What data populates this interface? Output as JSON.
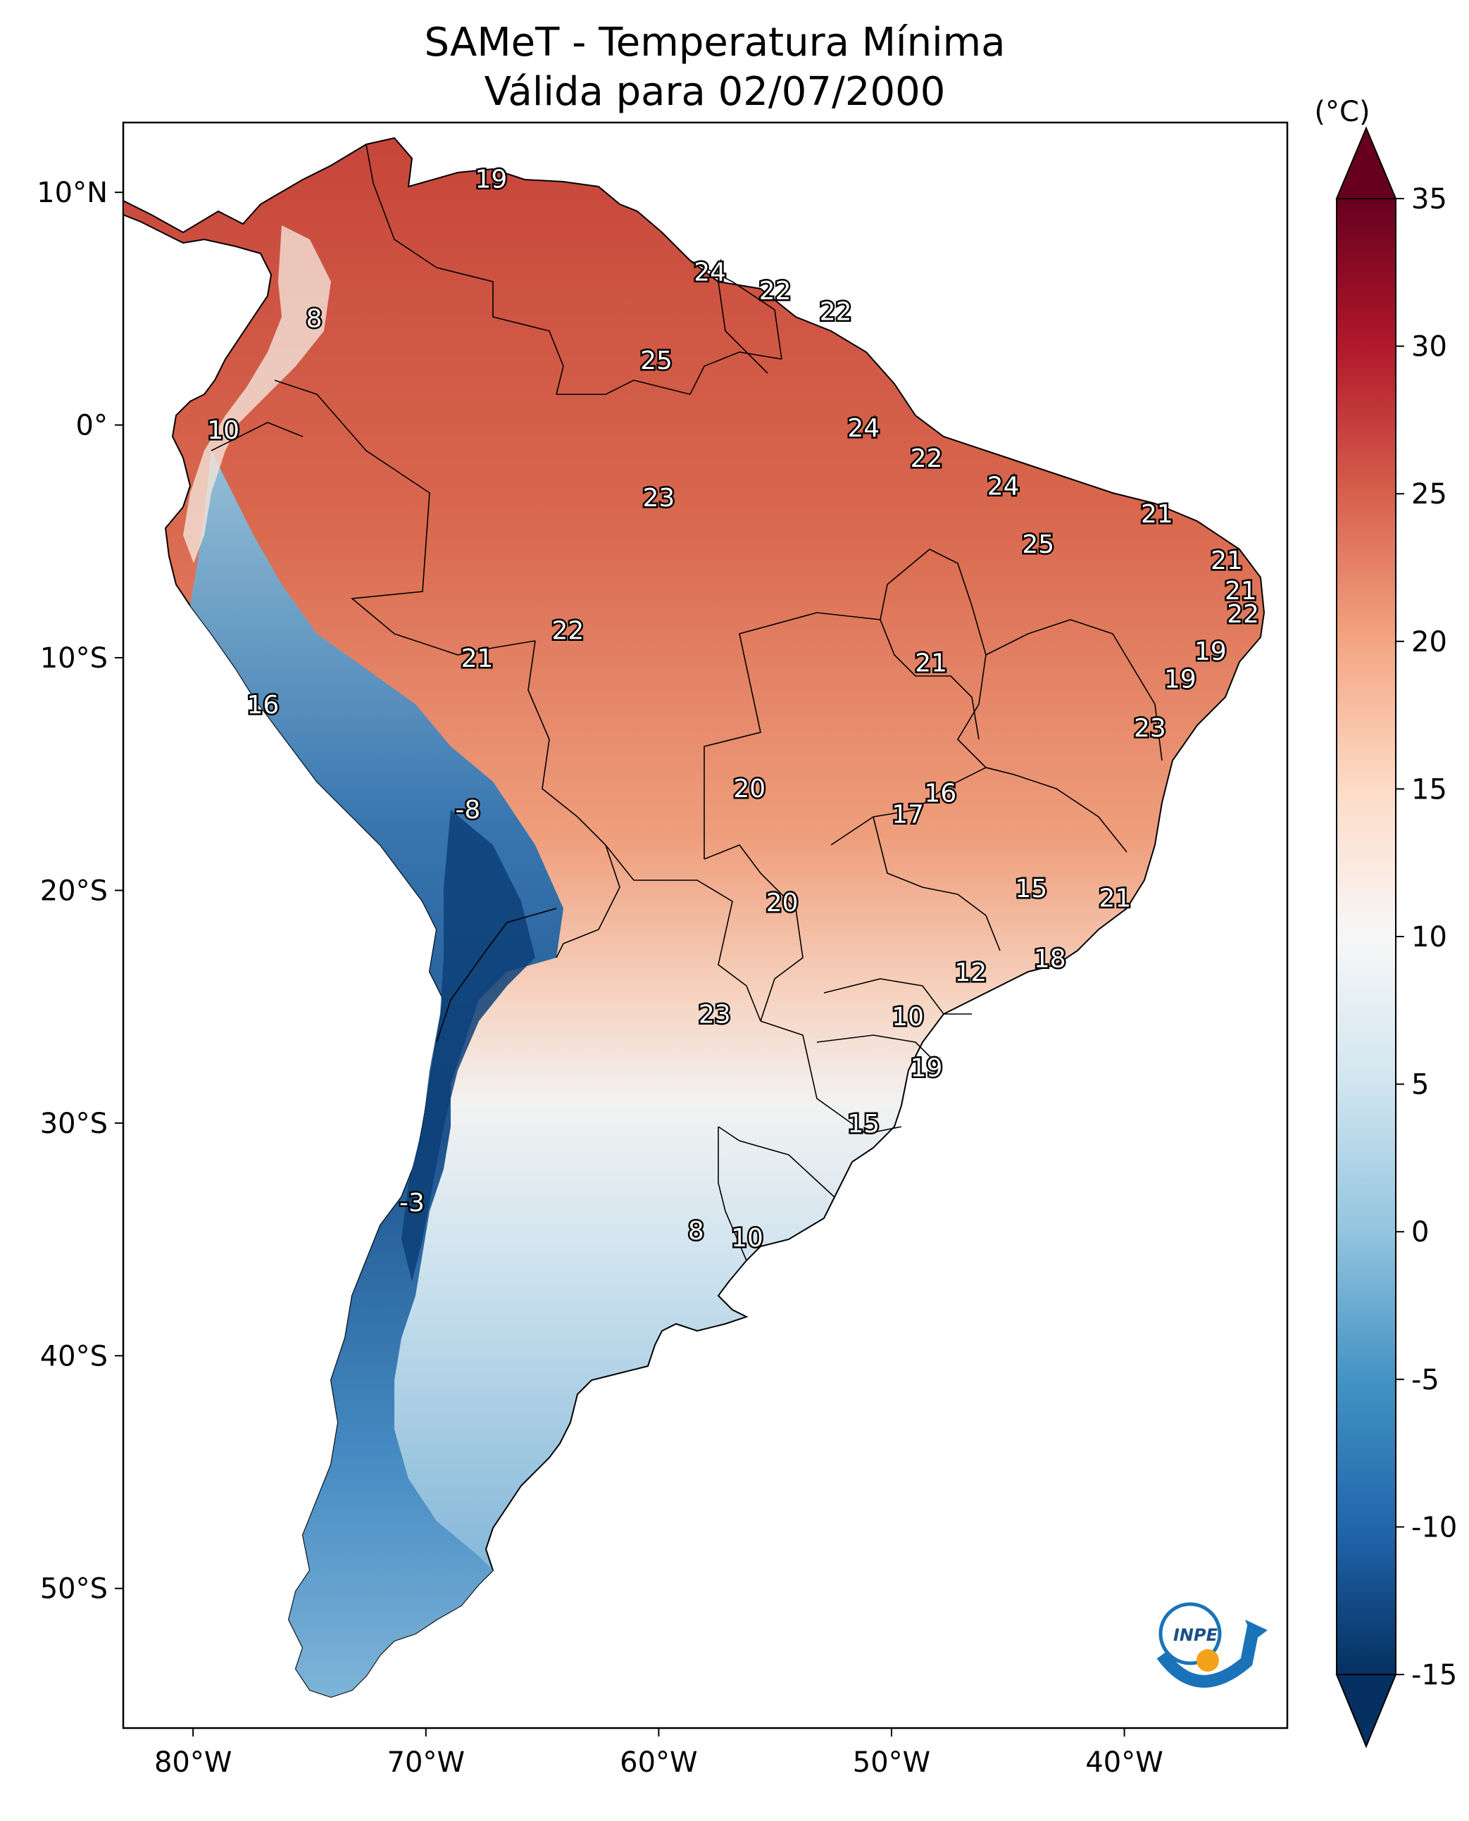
{
  "title": {
    "line1": "SAMeT - Temperatura Mínima",
    "line2": "Válida para 02/07/2000"
  },
  "map": {
    "lon_ticks": [
      "80°W",
      "70°W",
      "60°W",
      "50°W",
      "40°W"
    ],
    "lat_ticks": [
      "10°N",
      "0°",
      "10°S",
      "20°S",
      "30°S",
      "40°S",
      "50°S"
    ],
    "extent": {
      "lon": [
        -83,
        -33
      ],
      "lat": [
        -56,
        13
      ]
    }
  },
  "colorbar": {
    "unit": "(°C)",
    "ticks": [
      "35",
      "30",
      "25",
      "20",
      "15",
      "10",
      "5",
      "0",
      "-5",
      "-10",
      "-15"
    ],
    "range": [
      -15,
      35
    ],
    "colors": [
      "#053061",
      "#2166ac",
      "#4393c3",
      "#92c5de",
      "#d1e5f0",
      "#f7f7f7",
      "#fddbc7",
      "#f4a582",
      "#d6604d",
      "#b2182b",
      "#67001f"
    ]
  },
  "station_labels": [
    {
      "v": "19",
      "lon": -67.2,
      "lat": 10.6
    },
    {
      "v": "8",
      "lon": -74.8,
      "lat": 4.6
    },
    {
      "v": "24",
      "lon": -57.8,
      "lat": 6.6
    },
    {
      "v": "22",
      "lon": -55.0,
      "lat": 5.8
    },
    {
      "v": "22",
      "lon": -52.4,
      "lat": 4.9
    },
    {
      "v": "25",
      "lon": -60.1,
      "lat": 2.8
    },
    {
      "v": "10",
      "lon": -78.7,
      "lat": -0.2
    },
    {
      "v": "24",
      "lon": -51.2,
      "lat": -0.1
    },
    {
      "v": "22",
      "lon": -48.5,
      "lat": -1.4
    },
    {
      "v": "23",
      "lon": -60.0,
      "lat": -3.1
    },
    {
      "v": "24",
      "lon": -45.2,
      "lat": -2.6
    },
    {
      "v": "21",
      "lon": -38.6,
      "lat": -3.8
    },
    {
      "v": "25",
      "lon": -43.7,
      "lat": -5.1
    },
    {
      "v": "21",
      "lon": -35.6,
      "lat": -5.8
    },
    {
      "v": "21",
      "lon": -35.0,
      "lat": -7.1
    },
    {
      "v": "22",
      "lon": -34.9,
      "lat": -8.1
    },
    {
      "v": "22",
      "lon": -63.9,
      "lat": -8.8
    },
    {
      "v": "21",
      "lon": -67.8,
      "lat": -10.0
    },
    {
      "v": "21",
      "lon": -48.3,
      "lat": -10.2
    },
    {
      "v": "19",
      "lon": -36.3,
      "lat": -9.7
    },
    {
      "v": "19",
      "lon": -37.6,
      "lat": -10.9
    },
    {
      "v": "16",
      "lon": -77.0,
      "lat": -12.0
    },
    {
      "v": "23",
      "lon": -38.9,
      "lat": -13.0
    },
    {
      "v": "20",
      "lon": -56.1,
      "lat": -15.6
    },
    {
      "v": "16",
      "lon": -47.9,
      "lat": -15.8
    },
    {
      "v": "17",
      "lon": -49.3,
      "lat": -16.7
    },
    {
      "v": "-8",
      "lon": -68.2,
      "lat": -16.5
    },
    {
      "v": "15",
      "lon": -44.0,
      "lat": -19.9
    },
    {
      "v": "21",
      "lon": -40.4,
      "lat": -20.3
    },
    {
      "v": "20",
      "lon": -54.7,
      "lat": -20.5
    },
    {
      "v": "18",
      "lon": -43.2,
      "lat": -22.9
    },
    {
      "v": "12",
      "lon": -46.6,
      "lat": -23.5
    },
    {
      "v": "23",
      "lon": -57.6,
      "lat": -25.3
    },
    {
      "v": "10",
      "lon": -49.3,
      "lat": -25.4
    },
    {
      "v": "19",
      "lon": -48.5,
      "lat": -27.6
    },
    {
      "v": "15",
      "lon": -51.2,
      "lat": -30.0
    },
    {
      "v": "-3",
      "lon": -70.6,
      "lat": -33.4
    },
    {
      "v": "8",
      "lon": -58.4,
      "lat": -34.6
    },
    {
      "v": "10",
      "lon": -56.2,
      "lat": -34.9
    }
  ]
}
